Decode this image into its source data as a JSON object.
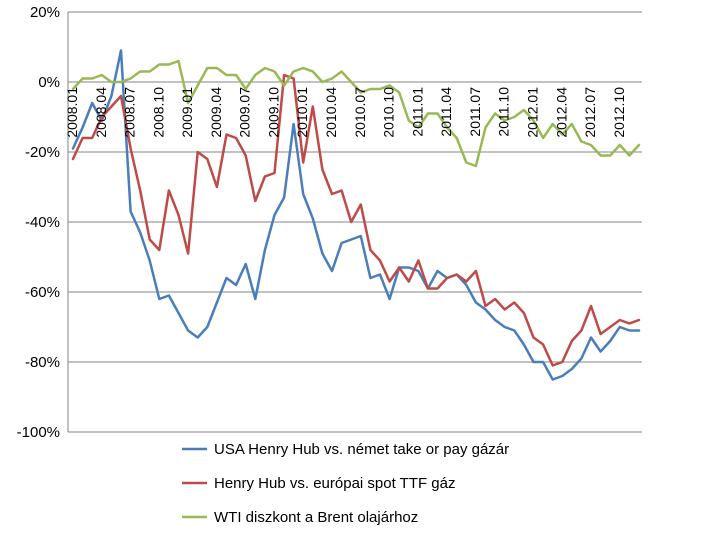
{
  "chart_data": {
    "type": "line",
    "title": "",
    "xlabel": "",
    "ylabel": "",
    "y_unit": "%",
    "ylim": [
      -100,
      20
    ],
    "y_ticks": [
      20,
      0,
      -20,
      -40,
      -60,
      -80,
      -100
    ],
    "y_tick_labels": [
      "20%",
      "0%",
      "-20%",
      "-40%",
      "-60%",
      "-80%",
      "-100%"
    ],
    "grid": "horizontal",
    "legend_position": "bottom",
    "x_tick_labels": [
      {
        "index": 0,
        "label": "2008.01"
      },
      {
        "index": 3,
        "label": "2008.04"
      },
      {
        "index": 6,
        "label": "2008.07"
      },
      {
        "index": 9,
        "label": "2008.10"
      },
      {
        "index": 12,
        "label": "2009.01"
      },
      {
        "index": 15,
        "label": "2009.04"
      },
      {
        "index": 18,
        "label": "2009.07"
      },
      {
        "index": 21,
        "label": "2009.10"
      },
      {
        "index": 24,
        "label": "2010.01"
      },
      {
        "index": 27,
        "label": "2010.04"
      },
      {
        "index": 30,
        "label": "2010.07"
      },
      {
        "index": 33,
        "label": "2010.10"
      },
      {
        "index": 36,
        "label": "2011.01"
      },
      {
        "index": 39,
        "label": "2011.04"
      },
      {
        "index": 42,
        "label": "2011.07"
      },
      {
        "index": 45,
        "label": "2011.10"
      },
      {
        "index": 48,
        "label": "2012.01"
      },
      {
        "index": 51,
        "label": "2012.04"
      },
      {
        "index": 54,
        "label": "2012.07"
      },
      {
        "index": 57,
        "label": "2012.10"
      }
    ],
    "series": [
      {
        "name": "USA Henry Hub vs. német take or pay gázár",
        "color": "#4a7ebb",
        "values": [
          -19,
          -13,
          -6,
          -11,
          -4,
          9,
          -37,
          -43,
          -51,
          -62,
          -61,
          -66,
          -71,
          -73,
          -70,
          -63,
          -56,
          -58,
          -52,
          -62,
          -48,
          -38,
          -33,
          -12,
          -32,
          -39,
          -49,
          -54,
          -46,
          -45,
          -44,
          -56,
          -55,
          -62,
          -53,
          -53,
          -54,
          -59,
          -54,
          -56,
          -55,
          -58,
          -63,
          -65,
          -68,
          -70,
          -71,
          -75,
          -80,
          -80,
          -85,
          -84,
          -82,
          -79,
          -73,
          -77,
          -74,
          -70,
          -71,
          -71
        ]
      },
      {
        "name": "Henry Hub vs. európai spot TTF gáz",
        "color": "#be4b48",
        "values": [
          -22,
          -16,
          -16,
          -10,
          -7,
          -4,
          -19,
          -31,
          -45,
          -48,
          -31,
          -38,
          -49,
          -20,
          -22,
          -30,
          -15,
          -16,
          -21,
          -34,
          -27,
          -26,
          2,
          1,
          -23,
          -7,
          -25,
          -32,
          -31,
          -40,
          -35,
          -48,
          -51,
          -57,
          -53,
          -57,
          -51,
          -59,
          -59,
          -56,
          -55,
          -57,
          -54,
          -64,
          -62,
          -65,
          -63,
          -66,
          -73,
          -75,
          -81,
          -80,
          -74,
          -71,
          -64,
          -72,
          -70,
          -68,
          -69,
          -68
        ]
      },
      {
        "name": "WTI diszkont a Brent olajárhoz",
        "color": "#98b954",
        "values": [
          -2,
          1,
          1,
          2,
          0,
          0,
          1,
          3,
          3,
          5,
          5,
          6,
          -6,
          -1,
          4,
          4,
          2,
          2,
          -2,
          2,
          4,
          3,
          -1,
          3,
          4,
          3,
          0,
          1,
          3,
          0,
          -3,
          -2,
          -2,
          -1,
          -3,
          -11,
          -13,
          -9,
          -9,
          -13,
          -16,
          -23,
          -24,
          -13,
          -9,
          -11,
          -10,
          -8,
          -11,
          -16,
          -12,
          -15,
          -12,
          -17,
          -18,
          -21,
          -21,
          -18,
          -21,
          -18
        ]
      }
    ]
  }
}
